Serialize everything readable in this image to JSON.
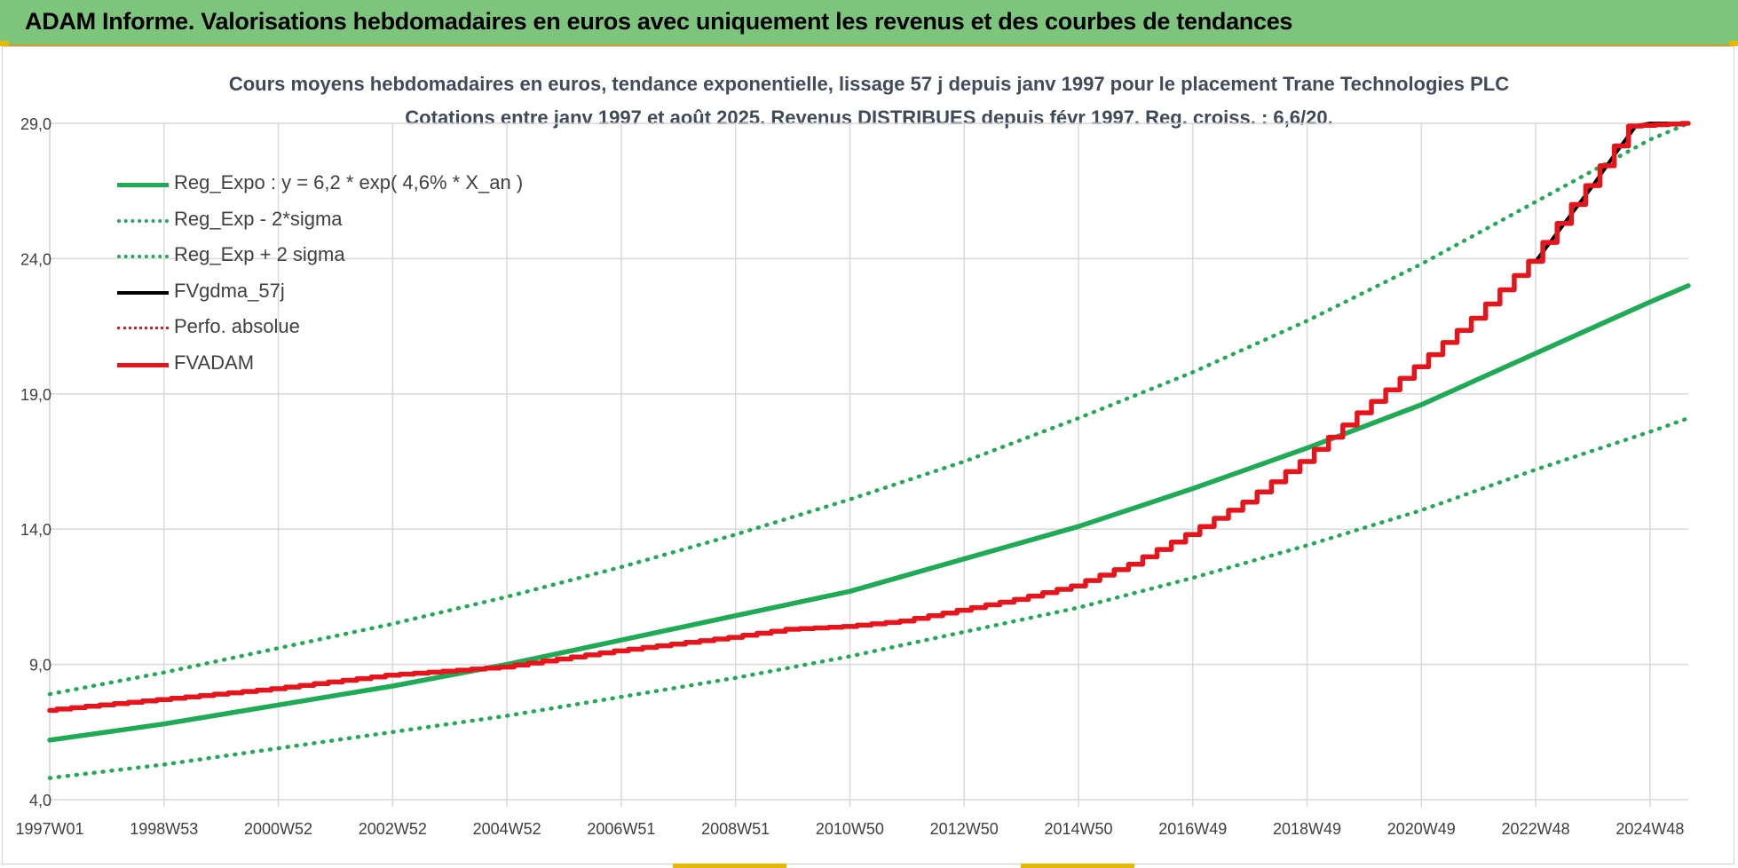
{
  "header": {
    "title": "ADAM Informe. Valorisations hebdomadaires en euros avec uniquement les revenus et des courbes de tendances"
  },
  "colors": {
    "banner": "#7dc47d",
    "green": "#1faa55",
    "red": "#e8141b",
    "black": "#000000",
    "grid": "#d9d9d9"
  },
  "chart_data": {
    "type": "line",
    "title": "Cours moyens hebdomadaires en euros, tendance exponentielle, lissage 57 j depuis janv 1997 pour le placement Trane Technologies PLC",
    "subtitle": "Cotations entre janv 1997 et août 2025.  Revenus DISTRIBUES depuis févr 1997.  Reg. croiss. : 6,6/20.",
    "xlabel": "",
    "ylabel": "",
    "x_range": [
      1997.0,
      2025.67
    ],
    "ylim": [
      4.0,
      29.0
    ],
    "y_ticks": [
      "4,0",
      "9,0",
      "14,0",
      "19,0",
      "24,0",
      "29,0"
    ],
    "x_ticks": [
      {
        "label": "1997W01",
        "x": 1997.0
      },
      {
        "label": "1998W53",
        "x": 1999.0
      },
      {
        "label": "2000W52",
        "x": 2001.0
      },
      {
        "label": "2002W52",
        "x": 2003.0
      },
      {
        "label": "2004W52",
        "x": 2005.0
      },
      {
        "label": "2006W51",
        "x": 2007.0
      },
      {
        "label": "2008W51",
        "x": 2009.0
      },
      {
        "label": "2010W50",
        "x": 2011.0
      },
      {
        "label": "2012W50",
        "x": 2013.0
      },
      {
        "label": "2014W50",
        "x": 2015.0
      },
      {
        "label": "2016W49",
        "x": 2017.0
      },
      {
        "label": "2018W49",
        "x": 2019.0
      },
      {
        "label": "2020W49",
        "x": 2021.0
      },
      {
        "label": "2022W48",
        "x": 2023.0
      },
      {
        "label": "2024W48",
        "x": 2025.0
      }
    ],
    "grid": true,
    "legend_position": "top-left",
    "series": [
      {
        "name": "Reg_Expo : y = 6,2 * exp( 4,6% *  X_an )",
        "style": "solid-green",
        "x": [
          1997,
          1999,
          2001,
          2003,
          2005,
          2007,
          2009,
          2011,
          2013,
          2015,
          2017,
          2019,
          2021,
          2023,
          2025,
          2025.67
        ],
        "y": [
          6.2,
          6.8,
          7.5,
          8.2,
          9.0,
          9.9,
          10.8,
          11.7,
          12.9,
          14.1,
          15.5,
          17.0,
          18.6,
          20.5,
          22.4,
          23.0
        ]
      },
      {
        "name": "Reg_Exp - 2*sigma",
        "style": "dotted-green",
        "x": [
          1997,
          1999,
          2001,
          2003,
          2005,
          2007,
          2009,
          2011,
          2013,
          2015,
          2017,
          2019,
          2021,
          2023,
          2025,
          2025.67
        ],
        "y": [
          4.8,
          5.3,
          5.9,
          6.5,
          7.1,
          7.8,
          8.5,
          9.3,
          10.2,
          11.1,
          12.2,
          13.4,
          14.7,
          16.2,
          17.6,
          18.1
        ]
      },
      {
        "name": "Reg_Exp + 2 sigma",
        "style": "dotted-green",
        "x": [
          1997,
          1999,
          2001,
          2003,
          2005,
          2007,
          2009,
          2011,
          2013,
          2015,
          2017,
          2019,
          2021,
          2023,
          2025,
          2025.67
        ],
        "y": [
          7.9,
          8.7,
          9.6,
          10.5,
          11.5,
          12.6,
          13.8,
          15.1,
          16.5,
          18.1,
          19.8,
          21.7,
          23.8,
          26.1,
          28.4,
          29.0
        ]
      },
      {
        "name": "FVgdma_57j",
        "style": "solid-black",
        "x": [
          2023.0,
          2023.5,
          2024.0,
          2024.4,
          2024.75,
          2025.0,
          2025.67
        ],
        "y": [
          23.9,
          25.3,
          26.7,
          27.9,
          28.9,
          29.0,
          29.0
        ]
      },
      {
        "name": "Perfo. absolue",
        "style": "dotted-red",
        "x": [],
        "y": []
      },
      {
        "name": "FVADAM",
        "style": "solid-red",
        "x": [
          1997,
          1999,
          2001,
          2003,
          2005,
          2007,
          2009,
          2010,
          2011,
          2012,
          2013,
          2014,
          2015,
          2016,
          2017,
          2018,
          2019,
          2020,
          2021,
          2022,
          2023,
          2024,
          2024.75,
          2025.67
        ],
        "y": [
          7.3,
          7.7,
          8.1,
          8.6,
          8.9,
          9.5,
          10.0,
          10.3,
          10.4,
          10.6,
          11.0,
          11.4,
          11.9,
          12.7,
          13.8,
          15.0,
          16.5,
          18.3,
          20.0,
          21.8,
          23.9,
          26.7,
          28.9,
          29.0
        ]
      }
    ]
  }
}
